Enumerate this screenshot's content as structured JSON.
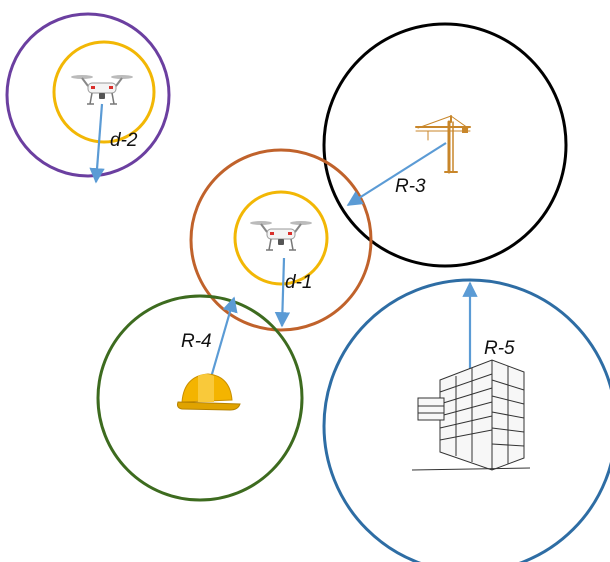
{
  "labels": {
    "d1": "d-1",
    "d2": "d-2",
    "r3": "R-3",
    "r4": "R-4",
    "r5": "R-5"
  },
  "icons": {
    "drone_small": "drone-icon",
    "drone_center": "drone-icon",
    "crane": "crane-icon",
    "helmet": "hard-hat-icon",
    "building": "building-icon"
  },
  "colors": {
    "drone2_outer": "#6b3fa0",
    "drone_inner": "#f2b705",
    "drone1_outer": "#c0622b",
    "crane_circle": "#000000",
    "helmet_circle": "#3d6b1f",
    "building_circle": "#2e6da4",
    "arrow": "#5b9bd5"
  }
}
